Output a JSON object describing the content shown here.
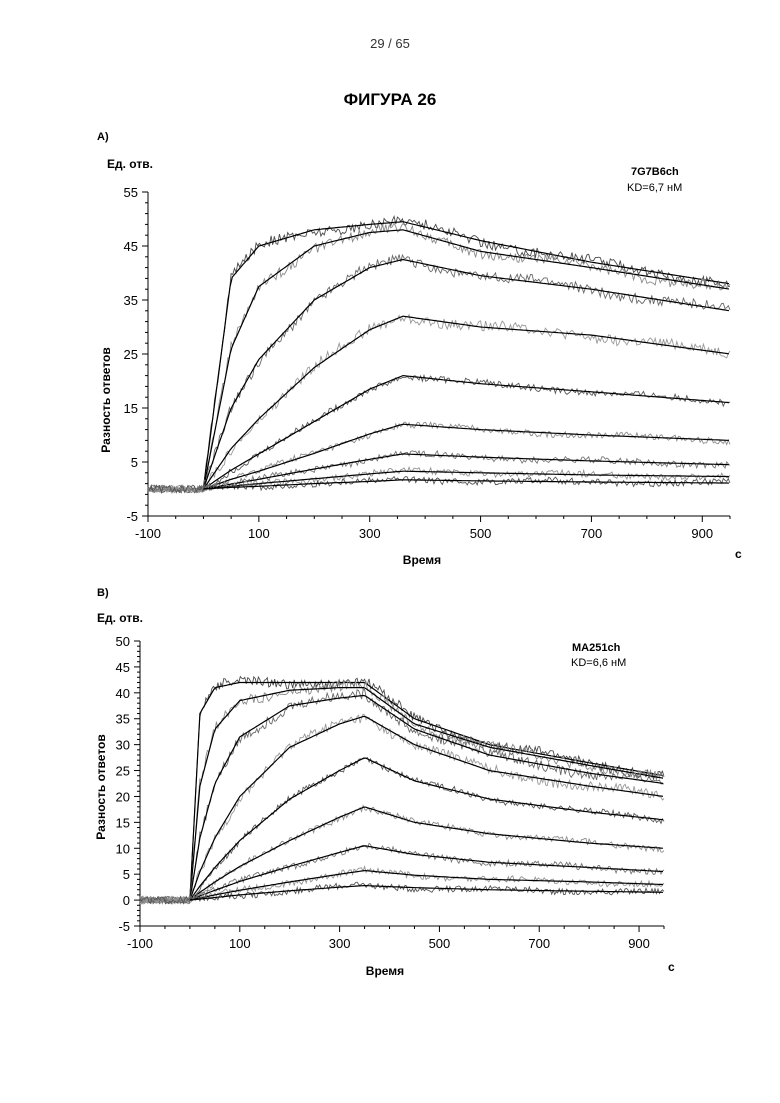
{
  "page": {
    "number": "29 / 65",
    "figure_title": "ФИГУРА 26"
  },
  "chart_data": [
    {
      "type": "line",
      "panel_label": "A)",
      "units_label": "Ед. отв.",
      "ylabel": "Разность ответов",
      "xlabel": "Время",
      "x_unit": "с",
      "annotation": {
        "line1": "7G7B6ch",
        "line2": "KD=6,7 нМ"
      },
      "xlim": [
        -100,
        950
      ],
      "ylim": [
        -5,
        55
      ],
      "xticks": [
        -100,
        100,
        300,
        500,
        700,
        900
      ],
      "xtick_labels": [
        "-100",
        "100",
        "300",
        "500",
        "700",
        "900"
      ],
      "yticks": [
        -5,
        5,
        15,
        25,
        35,
        45,
        55
      ],
      "ytick_labels": [
        "-5",
        "5",
        "15",
        "25",
        "35",
        "45",
        "55"
      ],
      "grid": false,
      "association_end": 360,
      "series": [
        {
          "x": [
            0,
            50,
            100,
            200,
            300,
            360,
            500,
            700,
            950
          ],
          "values": [
            0,
            39.0,
            45.0,
            48.0,
            49.0,
            49.5,
            46.0,
            42.0,
            38.0
          ]
        },
        {
          "x": [
            0,
            50,
            100,
            200,
            300,
            360,
            500,
            700,
            950
          ],
          "values": [
            0,
            26.0,
            37.5,
            45.0,
            47.5,
            48.0,
            44.0,
            41.0,
            37.0
          ]
        },
        {
          "x": [
            0,
            50,
            100,
            200,
            300,
            360,
            500,
            700,
            950
          ],
          "values": [
            0,
            15.0,
            24.0,
            35.0,
            41.0,
            42.5,
            39.5,
            37.0,
            33.0
          ]
        },
        {
          "x": [
            0,
            50,
            100,
            200,
            300,
            360,
            500,
            700,
            950
          ],
          "values": [
            0,
            7.5,
            13.0,
            22.5,
            29.5,
            32.0,
            30.0,
            28.5,
            25.0
          ]
        },
        {
          "x": [
            0,
            50,
            100,
            200,
            300,
            360,
            500,
            700,
            950
          ],
          "values": [
            0,
            3.5,
            6.5,
            12.5,
            18.5,
            21.0,
            19.5,
            18.0,
            16.0
          ]
        },
        {
          "x": [
            0,
            50,
            100,
            200,
            300,
            360,
            500,
            700,
            950
          ],
          "values": [
            0,
            1.8,
            3.3,
            6.6,
            10.2,
            12.0,
            11.0,
            10.0,
            9.0
          ]
        },
        {
          "x": [
            0,
            50,
            100,
            200,
            300,
            360,
            500,
            700,
            950
          ],
          "values": [
            0,
            0.9,
            1.8,
            3.7,
            5.5,
            6.5,
            5.9,
            5.2,
            4.5
          ]
        },
        {
          "x": [
            0,
            50,
            100,
            200,
            300,
            360,
            500,
            700,
            950
          ],
          "values": [
            0,
            0.5,
            1.0,
            1.9,
            2.8,
            3.3,
            3.0,
            2.6,
            2.3
          ]
        },
        {
          "x": [
            0,
            50,
            100,
            200,
            300,
            360,
            500,
            700,
            950
          ],
          "values": [
            0,
            0.3,
            0.5,
            1.0,
            1.4,
            1.7,
            1.5,
            1.3,
            1.1
          ]
        }
      ]
    },
    {
      "type": "line",
      "panel_label": "B)",
      "units_label": "Ед. отв.",
      "ylabel": "Разность ответов",
      "xlabel": "Время",
      "x_unit": "с",
      "annotation": {
        "line1": "MA251ch",
        "line2": "KD=6,6 нМ"
      },
      "xlim": [
        -100,
        950
      ],
      "ylim": [
        -5,
        50
      ],
      "xticks": [
        -100,
        100,
        300,
        500,
        700,
        900
      ],
      "xtick_labels": [
        "-100",
        "100",
        "300",
        "500",
        "700",
        "900"
      ],
      "yticks": [
        -5,
        0,
        5,
        10,
        15,
        20,
        25,
        30,
        35,
        40,
        45,
        50
      ],
      "ytick_labels": [
        "-5",
        "0",
        "5",
        "10",
        "15",
        "20",
        "25",
        "30",
        "35",
        "40",
        "45",
        "50"
      ],
      "grid": false,
      "association_end": 350,
      "series": [
        {
          "x": [
            0,
            20,
            50,
            100,
            200,
            300,
            350,
            450,
            600,
            800,
            950
          ],
          "values": [
            0,
            36.0,
            41.0,
            42.0,
            42.0,
            42.0,
            42.0,
            35.0,
            30.0,
            26.5,
            24.0
          ]
        },
        {
          "x": [
            0,
            20,
            50,
            100,
            200,
            300,
            350,
            450,
            600,
            800,
            950
          ],
          "values": [
            0,
            22.0,
            33.0,
            38.5,
            40.5,
            41.0,
            41.0,
            34.0,
            29.5,
            26.0,
            23.5
          ]
        },
        {
          "x": [
            0,
            20,
            50,
            100,
            200,
            300,
            350,
            450,
            600,
            800,
            950
          ],
          "values": [
            0,
            12.0,
            22.5,
            31.5,
            37.5,
            39.0,
            39.5,
            33.0,
            28.0,
            24.5,
            22.5
          ]
        },
        {
          "x": [
            0,
            20,
            50,
            100,
            200,
            300,
            350,
            450,
            600,
            800,
            950
          ],
          "values": [
            0,
            5.5,
            12.0,
            20.0,
            29.5,
            34.0,
            35.5,
            30.0,
            25.0,
            22.0,
            20.0
          ]
        },
        {
          "x": [
            0,
            20,
            50,
            100,
            200,
            300,
            350,
            450,
            600,
            800,
            950
          ],
          "values": [
            0,
            2.7,
            6.3,
            11.5,
            19.5,
            25.0,
            27.5,
            23.0,
            19.5,
            17.0,
            15.5
          ]
        },
        {
          "x": [
            0,
            20,
            50,
            100,
            200,
            300,
            350,
            450,
            600,
            800,
            950
          ],
          "values": [
            0,
            1.5,
            3.5,
            6.5,
            11.5,
            16.0,
            18.0,
            15.0,
            12.8,
            11.0,
            10.0
          ]
        },
        {
          "x": [
            0,
            20,
            50,
            100,
            200,
            300,
            350,
            450,
            600,
            800,
            950
          ],
          "values": [
            0,
            0.8,
            1.9,
            3.6,
            6.5,
            9.2,
            10.5,
            8.8,
            7.3,
            6.3,
            5.5
          ]
        },
        {
          "x": [
            0,
            20,
            50,
            100,
            200,
            300,
            350,
            450,
            600,
            800,
            950
          ],
          "values": [
            0,
            0.4,
            1.0,
            1.9,
            3.5,
            5.0,
            5.7,
            4.8,
            4.0,
            3.5,
            3.0
          ]
        },
        {
          "x": [
            0,
            20,
            50,
            100,
            200,
            300,
            350,
            450,
            600,
            800,
            950
          ],
          "values": [
            0,
            0.2,
            0.5,
            1.0,
            1.8,
            2.5,
            2.8,
            2.4,
            2.0,
            1.7,
            1.5
          ]
        }
      ]
    }
  ]
}
